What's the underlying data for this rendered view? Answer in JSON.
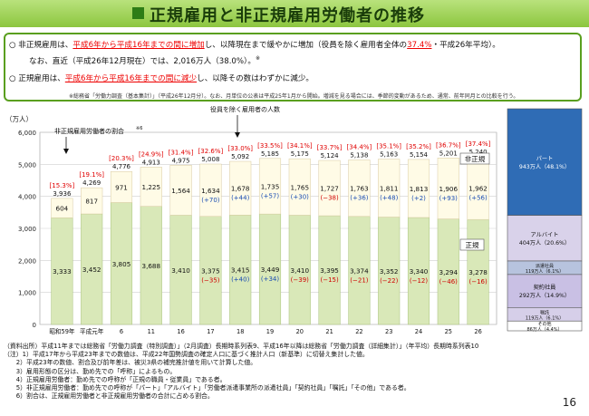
{
  "title": "正規雇用と非正規雇用労働者の推移",
  "callout": {
    "l1a": "○ 非正規雇用は、",
    "l1b": "平成6年から平成16年までの間に増加",
    "l1c": "し、以降現在まで緩やかに増加（役員を除く雇用者全体の",
    "l1d": "37.4%",
    "l1e": "・平成26年平均）。",
    "l2a": "なお、直近（平成26年12月現在）では、2,016万人（38.0%）。",
    "l2sup": "※",
    "l3a": "○ 正規雇用は、",
    "l3b": "平成6年から平成16年までの間に減少",
    "l3c": "し、以降その数はわずかに減少。",
    "footnote": "※総務省「労働力調査（基本集計）」（平成26年12月分）。なお、月単位の公表は平成25年1月から開始。増減を見る場合には、季節的変動があるため、通常、前年同月との比較を行う。"
  },
  "chart_data": {
    "type": "bar",
    "yunit": "（万人）",
    "ylim": [
      0,
      6000
    ],
    "yticks": [
      "0",
      "1,000",
      "2,000",
      "3,000",
      "4,000",
      "5,000",
      "6,000"
    ],
    "categories": [
      "昭和59年",
      "平成元年",
      "6",
      "11",
      "16",
      "17",
      "18",
      "19",
      "20",
      "21",
      "22",
      "23",
      "24",
      "25",
      "26"
    ],
    "series": [
      {
        "name": "正規",
        "values": [
          3333,
          3452,
          3805,
          3688,
          3410,
          3375,
          3415,
          3449,
          3410,
          3395,
          3374,
          3352,
          3340,
          3294,
          3278
        ]
      },
      {
        "name": "非正規",
        "values": [
          604,
          817,
          971,
          1225,
          1564,
          1634,
          1678,
          1735,
          1765,
          1727,
          1763,
          1811,
          1813,
          1906,
          1962
        ]
      }
    ],
    "totals": [
      "3,936",
      "4,269",
      "4,776",
      "4,913",
      "4,975",
      "5,008",
      "5,092",
      "5,185",
      "5,175",
      "5,124",
      "5,138",
      "5,163",
      "5,154",
      "5,201",
      "5,240"
    ],
    "ratios": [
      "[15.3%]",
      "[19.1%]",
      "[20.3%]",
      "[24.9%]",
      "[31.4%]",
      "[32.6%]",
      "[33.0%]",
      "[33.5%]",
      "[34.1%]",
      "[33.7%]",
      "[34.4%]",
      "[35.1%]",
      "[35.2%]",
      "[36.7%]",
      "[37.4%]"
    ],
    "nonreg_changes": [
      "",
      "",
      "",
      "",
      "",
      "(+70)",
      "(+44)",
      "(+57)",
      "(+30)",
      "(−38)",
      "(+36)",
      "(+48)",
      "(+2)",
      "(+93)",
      "(+56)"
    ],
    "reg_changes": [
      "",
      "",
      "",
      "",
      "",
      "(−35)",
      "(+40)",
      "(+34)",
      "(−39)",
      "(−15)",
      "(−21)",
      "(−22)",
      "(−12)",
      "(−46)",
      "(−16)"
    ],
    "annotations": {
      "ratio_label": "非正規雇用労働者の割合",
      "ratio_sup": "※6",
      "exec_label": "役員を除く雇用者の人数",
      "nonreg_label": "非正規",
      "reg_label": "正規"
    },
    "breakdown": [
      {
        "label": "パート",
        "value": "943万人（48.1%）",
        "share": 48.1,
        "color": "#2f6cb5"
      },
      {
        "label": "アルバイト",
        "value": "404万人（20.6%）",
        "share": 20.6,
        "color": "#d9d2ea"
      },
      {
        "label": "派遣社員",
        "value": "119万人（6.1%）",
        "share": 6.1,
        "color": "#b7c3de"
      },
      {
        "label": "契約社員",
        "value": "292万人（14.9%）",
        "share": 14.9,
        "color": "#c9c0e4"
      },
      {
        "label": "嘱託",
        "value": "119万人（6.1%）",
        "share": 6.1,
        "color": "#d6cfe9"
      },
      {
        "label": "その他",
        "value": "86万人（4.4%）",
        "share": 4.4,
        "color": "#ffffff"
      }
    ],
    "colors": {
      "regular": "#d9e8b8",
      "nonregular": "#fffbe6",
      "ratio_text": "#e00000",
      "change_blue": "#1a4db3",
      "change_red": "#d00000"
    }
  },
  "notes": [
    "（資料出所）平成11年までは総務省「労働力調査（特別調査）」（2月調査）長期時系列表9、平成16年以降は総務省「労働力調査（詳細集計）」（年平均）長期時系列表10",
    "（注）1）平成17年から平成23年までの数値は、平成22年国勢調査の確定人口に基づく推計人口（新基準）に切替え集計した値。",
    "　　2）平成23年の数値、割合及び前年差は、被災3県の補完推計値を用いて計算した値。",
    "　　3）雇用形態の区分は、勤め先での「呼称」によるもの。",
    "　　4）正規雇用労働者：勤め先での呼称が「正規の職員・従業員」である者。",
    "　　5）非正規雇用労働者：勤め先での呼称が「パート」「アルバイト」「労働者派遣事業所の派遣社員」「契約社員」「嘱託」「その他」である者。",
    "　　6）割合は、正規雇用労働者と非正規雇用労働者の合計に占める割合。"
  ],
  "page_number": "16"
}
